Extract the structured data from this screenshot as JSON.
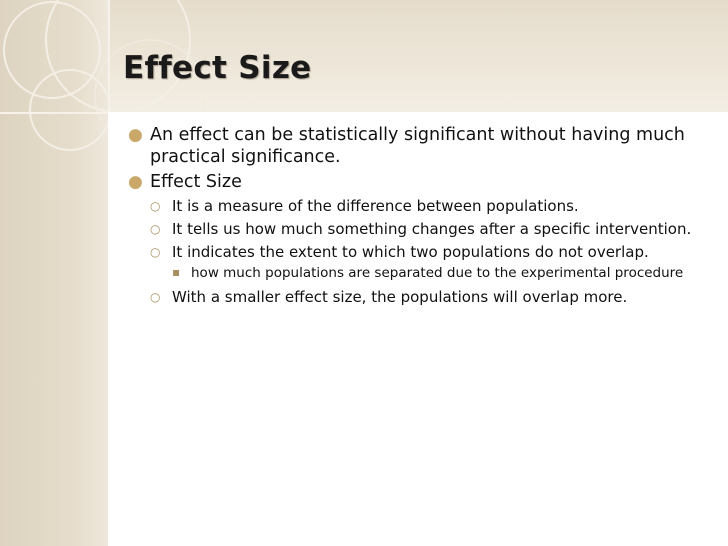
{
  "slide": {
    "title": "Effect Size",
    "bullets": [
      {
        "level": 1,
        "text": "An effect can be statistically significant without having much practical significance."
      },
      {
        "level": 1,
        "text": "Effect Size"
      },
      {
        "level": 2,
        "text": "It is a measure of the difference between populations."
      },
      {
        "level": 2,
        "text": "It tells us how much something changes after a specific intervention."
      },
      {
        "level": 2,
        "text": "It indicates the extent to which two populations do not overlap."
      },
      {
        "level": 3,
        "text": "how much populations are separated due to the experimental procedure"
      },
      {
        "level": 2,
        "text": "With a smaller effect size, the populations will overlap more."
      }
    ]
  },
  "theme": {
    "accent": "#c9a86a",
    "header_band": "#e8dfcf",
    "title_color": "#1a1a1a"
  }
}
